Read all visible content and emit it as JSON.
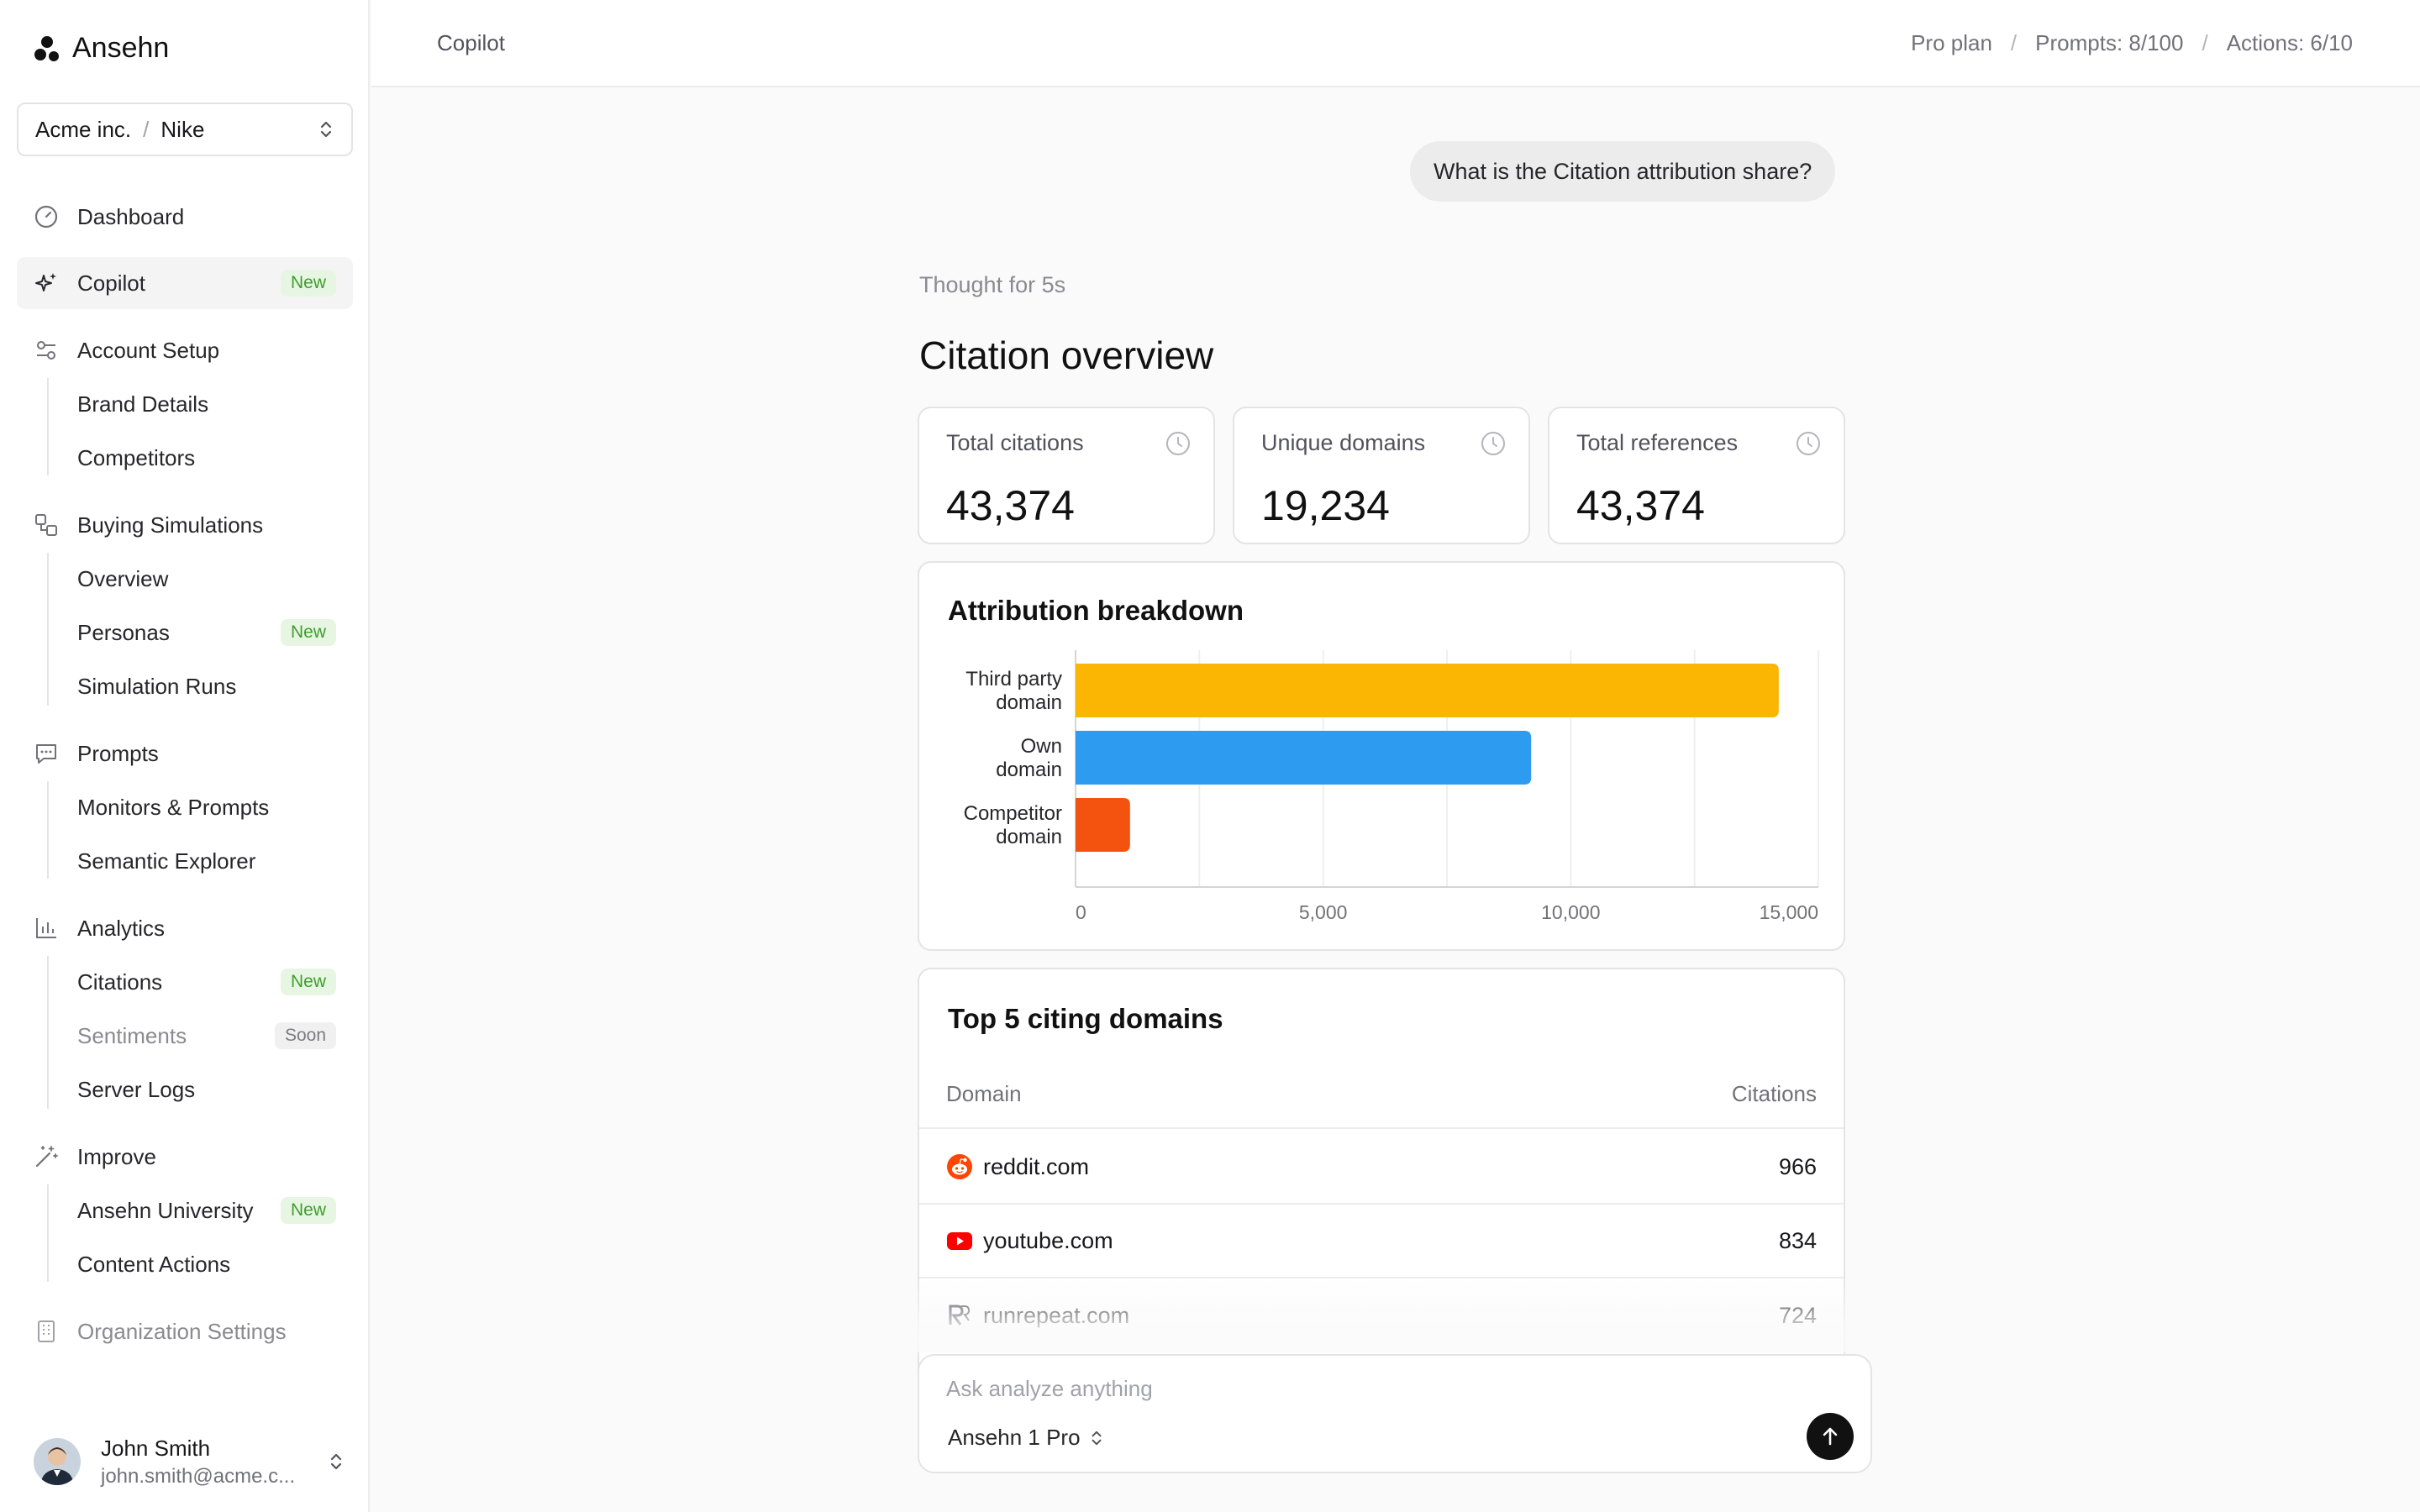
{
  "app": {
    "name": "Ansehn"
  },
  "org_switcher": {
    "org": "Acme inc.",
    "brand": "Nike"
  },
  "nav": {
    "dashboard": "Dashboard",
    "copilot": "Copilot",
    "account_setup": "Account Setup",
    "brand_details": "Brand Details",
    "competitors": "Competitors",
    "buying_simulations": "Buying Simulations",
    "overview": "Overview",
    "personas": "Personas",
    "simulation_runs": "Simulation Runs",
    "prompts": "Prompts",
    "monitors_prompts": "Monitors & Prompts",
    "semantic_explorer": "Semantic Explorer",
    "analytics": "Analytics",
    "citations": "Citations",
    "sentiments": "Sentiments",
    "server_logs": "Server Logs",
    "improve": "Improve",
    "ansehn_university": "Ansehn University",
    "content_actions": "Content Actions",
    "organization_settings": "Organization Settings",
    "badge_new": "New",
    "badge_soon": "Soon"
  },
  "user": {
    "name": "John Smith",
    "email": "john.smith@acme.c..."
  },
  "topbar": {
    "breadcrumb": "Copilot",
    "plan": "Pro plan",
    "prompts": "Prompts: 8/100",
    "actions": "Actions: 6/10",
    "separator": "/"
  },
  "chat": {
    "question": "What is the Citation attribution share?",
    "thought": "Thought for 5s",
    "title": "Citation overview"
  },
  "stats": [
    {
      "label": "Total citations",
      "value": "43,374"
    },
    {
      "label": "Unique domains",
      "value": "19,234"
    },
    {
      "label": "Total references",
      "value": "43,374"
    }
  ],
  "chart_data": {
    "type": "bar",
    "orientation": "horizontal",
    "title": "Attribution breakdown",
    "categories": [
      [
        "Third party",
        "domain"
      ],
      [
        "Own",
        "domain"
      ],
      [
        "Competitor",
        "domain"
      ]
    ],
    "values": [
      14200,
      9200,
      1100
    ],
    "colors": [
      "#fbb604",
      "#2d9bef",
      "#f3520f"
    ],
    "xlim": [
      0,
      15000
    ],
    "ticks": [
      0,
      5000,
      10000,
      15000
    ],
    "tick_labels": [
      "0",
      "5,000",
      "10,000",
      "15,000"
    ],
    "grid": true
  },
  "top_domains": {
    "title": "Top 5 citing domains",
    "col_domain": "Domain",
    "col_citations": "Citations",
    "rows": [
      {
        "domain": "reddit.com",
        "citations": "966",
        "icon": "reddit-icon"
      },
      {
        "domain": "youtube.com",
        "citations": "834",
        "icon": "youtube-icon"
      },
      {
        "domain": "runrepeat.com",
        "citations": "724",
        "icon": "runrepeat-icon"
      }
    ]
  },
  "composer": {
    "placeholder": "Ask analyze anything",
    "model": "Ansehn 1 Pro"
  }
}
